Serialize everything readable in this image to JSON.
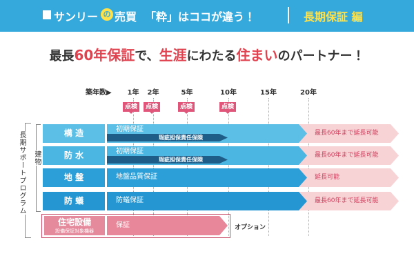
{
  "header": {
    "brand": "サンリー",
    "brand_mark": "の",
    "brand_suffix": "売買",
    "tagline": "「粋」はココが違う！",
    "section": "長期保証 編"
  },
  "headline": [
    "最長",
    "60年保証",
    "で、",
    "生涯",
    "にわたる",
    "住まい",
    "のパートナー！"
  ],
  "timeline": {
    "label": "築年数▶",
    "years": [
      "1年",
      "2年",
      "5年",
      "10年",
      "15年",
      "20年"
    ],
    "inspection": [
      "点検",
      "点検",
      "点検",
      "点検"
    ]
  },
  "program_label": "長期サポートプログラム",
  "building_label": "建物",
  "rows": [
    {
      "label": "構 造",
      "guarantee": "初期保証",
      "insurance": "瑕疵担保責任保険",
      "extension": "最長60年まで延長可能"
    },
    {
      "label": "防 水",
      "guarantee": "初期保証",
      "insurance": "瑕疵担保責任保険",
      "extension": "最長60年まで延長可能"
    },
    {
      "label": "地 盤",
      "guarantee": "地盤品質保証",
      "extension": "延長可能"
    },
    {
      "label": "防 蟻",
      "guarantee": "防蟻保証",
      "extension": "最長60年まで延長可能"
    }
  ],
  "equipment": {
    "label": "住宅設備",
    "sublabel": "設備保証対象機器",
    "guarantee": "保証",
    "option": "オプション"
  }
}
